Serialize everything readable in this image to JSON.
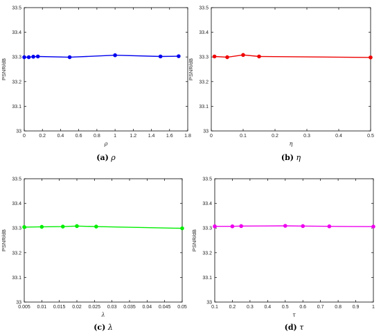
{
  "chart_data": [
    {
      "type": "line",
      "caption_tag": "(a)",
      "caption_symbol": "ρ",
      "xlabel": "ρ",
      "ylabel": "PSNR/dB",
      "xlim": [
        0,
        1.8
      ],
      "ylim": [
        33,
        33.5
      ],
      "xticks": [
        "0",
        "0.2",
        "0.4",
        "0.6",
        "0.8",
        "1",
        "1.2",
        "1.4",
        "1.6",
        "1.8"
      ],
      "yticks": [
        "33",
        "33.1",
        "33.2",
        "33.3",
        "33.4",
        "33.5"
      ],
      "color": "#0000ee",
      "grid": false,
      "series": [
        {
          "x": [
            0,
            0.05,
            0.1,
            0.15,
            0.5,
            1.0,
            1.5,
            1.7
          ],
          "y": [
            33.299,
            33.299,
            33.301,
            33.302,
            33.299,
            33.307,
            33.302,
            33.303
          ]
        }
      ]
    },
    {
      "type": "line",
      "caption_tag": "(b)",
      "caption_symbol": "η",
      "xlabel": "η",
      "ylabel": "PSNR/dB",
      "xlim": [
        0,
        0.5
      ],
      "ylim": [
        33,
        33.5
      ],
      "xticks": [
        "0",
        "0.1",
        "0.2",
        "0.3",
        "0.4",
        "0.5"
      ],
      "yticks": [
        "33",
        "33.1",
        "33.2",
        "33.3",
        "33.4",
        "33.5"
      ],
      "color": "#ee0000",
      "grid": false,
      "series": [
        {
          "x": [
            0.01,
            0.05,
            0.1,
            0.15,
            0.5
          ],
          "y": [
            33.302,
            33.299,
            33.308,
            33.302,
            33.298
          ]
        }
      ]
    },
    {
      "type": "line",
      "caption_tag": "(c)",
      "caption_symbol": "λ",
      "xlabel": "λ",
      "ylabel": "PSNR/dB",
      "xlim": [
        0.005,
        0.05
      ],
      "ylim": [
        33,
        33.5
      ],
      "xticks": [
        "0.005",
        "0.01",
        "0.015",
        "0.02",
        "0.025",
        "0.03",
        "0.035",
        "0.04",
        "0.045",
        "0.05"
      ],
      "yticks": [
        "33",
        "33.1",
        "33.2",
        "33.3",
        "33.4",
        "33.5"
      ],
      "color": "#00ee00",
      "grid": false,
      "series": [
        {
          "x": [
            0.005,
            0.01,
            0.016,
            0.02,
            0.0255,
            0.05
          ],
          "y": [
            33.304,
            33.305,
            33.306,
            33.308,
            33.306,
            33.299
          ]
        }
      ]
    },
    {
      "type": "line",
      "caption_tag": "(d)",
      "caption_symbol": "τ",
      "xlabel": "τ",
      "ylabel": "PSNR/dB",
      "xlim": [
        0.1,
        1
      ],
      "ylim": [
        33,
        33.5
      ],
      "xticks": [
        "0.1",
        "0.2",
        "0.3",
        "0.4",
        "0.5",
        "0.6",
        "0.7",
        "0.8",
        "0.9",
        "1"
      ],
      "yticks": [
        "33",
        "33.1",
        "33.2",
        "33.3",
        "33.4",
        "33.5"
      ],
      "color": "#ee00ee",
      "grid": false,
      "series": [
        {
          "x": [
            0.1,
            0.2,
            0.25,
            0.5,
            0.6,
            0.75,
            1.0
          ],
          "y": [
            33.307,
            33.307,
            33.308,
            33.309,
            33.308,
            33.307,
            33.306
          ]
        }
      ]
    }
  ]
}
